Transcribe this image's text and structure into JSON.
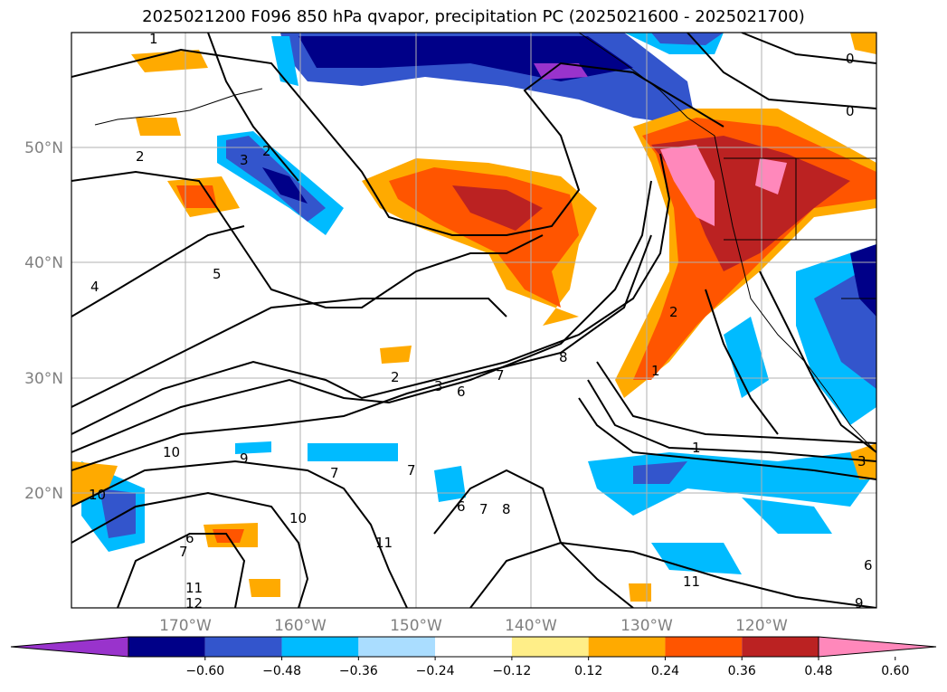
{
  "title": "2025021200 F096 850 hPa qvapor, precipitation PC (2025021600 - 2025021700)",
  "map": {
    "lon_ticks": [
      {
        "value": -170,
        "label": "170°W"
      },
      {
        "value": -160,
        "label": "160°W"
      },
      {
        "value": -150,
        "label": "150°W"
      },
      {
        "value": -140,
        "label": "140°W"
      },
      {
        "value": -130,
        "label": "130°W"
      },
      {
        "value": -120,
        "label": "120°W"
      }
    ],
    "lat_ticks": [
      {
        "value": 20,
        "label": "20°N"
      },
      {
        "value": 30,
        "label": "30°N"
      },
      {
        "value": 40,
        "label": "40°N"
      },
      {
        "value": 50,
        "label": "50°N"
      }
    ],
    "contour_labels": [
      "1",
      "2",
      "3",
      "2",
      "4",
      "5",
      "2",
      "3",
      "6",
      "7",
      "8",
      "10",
      "9",
      "10",
      "10",
      "7",
      "6",
      "7",
      "11",
      "11",
      "12",
      "7",
      "8",
      "6",
      "7",
      "11",
      "0",
      "0",
      "1",
      "2",
      "1",
      "3",
      "6",
      "9"
    ]
  },
  "colorbar": {
    "ticks": [
      "−0.60",
      "−0.48",
      "−0.36",
      "−0.24",
      "−0.12",
      "0.12",
      "0.24",
      "0.36",
      "0.48",
      "0.60"
    ],
    "colors": [
      "#9933cc",
      "#000088",
      "#3355cc",
      "#00bbff",
      "#aaddff",
      "#ffffff",
      "#ffee88",
      "#ffaa00",
      "#ff5500",
      "#bb2222",
      "#ff88bb"
    ]
  }
}
